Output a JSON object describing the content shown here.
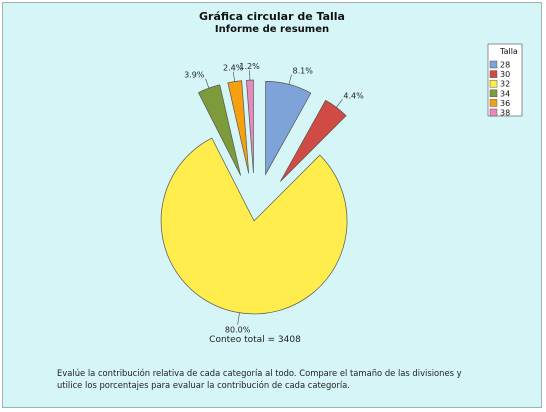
{
  "chart_data": {
    "type": "pie",
    "title": "Gráfica circular de Talla",
    "subtitle": "Informe de resumen",
    "legend_title": "Talla",
    "legend_position": "top-right",
    "slices": [
      {
        "category": "28",
        "percent": 8.1,
        "label": "8.1%",
        "color": "#7ea3d8"
      },
      {
        "category": "30",
        "percent": 4.4,
        "label": "4.4%",
        "color": "#cf4b44"
      },
      {
        "category": "32",
        "percent": 80.0,
        "label": "80.0%",
        "color": "#ffec4d"
      },
      {
        "category": "34",
        "percent": 3.9,
        "label": "3.9%",
        "color": "#7d9b3a"
      },
      {
        "category": "36",
        "percent": 2.4,
        "label": "2.4%",
        "color": "#f5a00f"
      },
      {
        "category": "38",
        "percent": 1.2,
        "label": "1.2%",
        "color": "#e888bd"
      }
    ],
    "total_label": "Conteo total = 3408",
    "note_lines": [
      "Evalúe la contribución relativa de cada categoría al todo. Compare el tamaño de las divisiones y",
      "utilice los porcentajes para evaluar la contribución de cada categoría."
    ]
  }
}
